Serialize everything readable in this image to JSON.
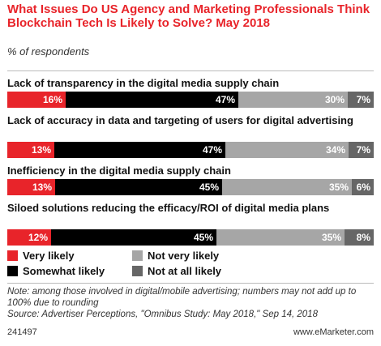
{
  "header": {
    "title": "What Issues Do US Agency and Marketing Professionals Think Blockchain Tech Is Likely to Solve? May 2018",
    "subtitle": "% of respondents"
  },
  "colors": {
    "very_likely": "#e8242a",
    "somewhat_likely": "#000000",
    "not_very_likely": "#a6a6a6",
    "not_at_all_likely": "#666666",
    "title": "#e8242a"
  },
  "chart_data": {
    "type": "bar",
    "orientation": "horizontal",
    "stacked": true,
    "categories": [
      "Lack of transparency in the digital media supply chain",
      "Lack of accuracy in data and targeting of users for digital advertising",
      "Inefficiency in the digital media supply chain",
      "Siloed solutions reducing the efficacy/ROI of digital media plans"
    ],
    "series": [
      {
        "name": "Very likely",
        "values": [
          16,
          13,
          13,
          12
        ]
      },
      {
        "name": "Somewhat likely",
        "values": [
          47,
          47,
          45,
          45
        ]
      },
      {
        "name": "Not very likely",
        "values": [
          30,
          34,
          35,
          35
        ]
      },
      {
        "name": "Not at all likely",
        "values": [
          7,
          7,
          6,
          8
        ]
      }
    ],
    "value_labels": [
      [
        "16%",
        "47%",
        "30%",
        "7%"
      ],
      [
        "13%",
        "47%",
        "34%",
        "7%"
      ],
      [
        "13%",
        "45%",
        "35%",
        "6%"
      ],
      [
        "12%",
        "45%",
        "35%",
        "8%"
      ]
    ],
    "title": "What Issues Do US Agency and Marketing Professionals Think Blockchain Tech Is Likely to Solve? May 2018",
    "legend_position": "bottom"
  },
  "legend": {
    "items": [
      "Very likely",
      "Not very likely",
      "Somewhat likely",
      "Not at all likely"
    ]
  },
  "notes": {
    "note": "Note: among those involved in digital/mobile advertising; numbers may not add up to 100% due to rounding",
    "source": "Source: Advertiser Perceptions, \"Omnibus Study: May 2018,\" Sep 14, 2018"
  },
  "footer": {
    "id": "241497",
    "brand": "www.eMarketer.com"
  }
}
